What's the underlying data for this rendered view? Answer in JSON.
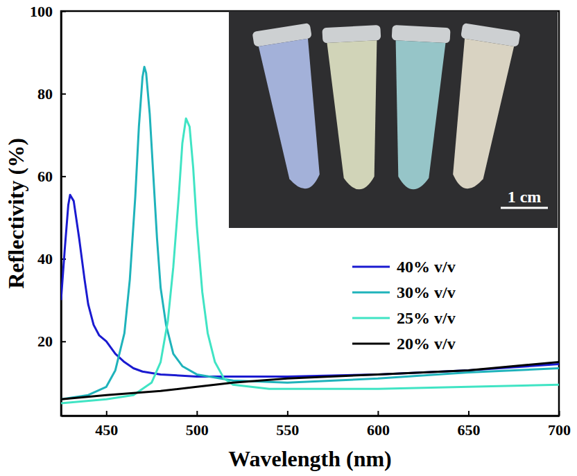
{
  "chart_data": {
    "type": "line",
    "x_label": "Wavelength (nm)",
    "y_label": "Reflectivity (%)",
    "xlim": [
      425,
      700
    ],
    "ylim": [
      2,
      100
    ],
    "xticks": [
      450,
      500,
      550,
      600,
      650,
      700
    ],
    "yticks": [
      20,
      40,
      60,
      80,
      100
    ],
    "legend": "lower right",
    "grid": false,
    "annotations": [
      {
        "text": "1 cm"
      }
    ],
    "series": [
      {
        "name": "40% v/v",
        "color": "#1a1ad0",
        "x": [
          425,
          427,
          429,
          430,
          432,
          435,
          438,
          440,
          443,
          446,
          450,
          455,
          460,
          465,
          470,
          480,
          500,
          550,
          600,
          650,
          700
        ],
        "values": [
          30,
          42,
          53,
          55.5,
          54,
          45,
          35,
          29,
          24,
          21.5,
          20,
          17,
          15,
          13.5,
          12.7,
          12,
          11.5,
          11.5,
          12,
          13,
          14.5
        ]
      },
      {
        "name": "30% v/v",
        "color": "#1fb3bb",
        "x": [
          425,
          440,
          450,
          455,
          460,
          463,
          466,
          468,
          470,
          471,
          472,
          474,
          476,
          478,
          480,
          483,
          487,
          492,
          500,
          520,
          550,
          600,
          650,
          700
        ],
        "values": [
          6,
          7,
          9,
          13,
          22,
          35,
          55,
          72,
          84,
          86.5,
          85,
          75,
          60,
          45,
          33,
          24,
          17,
          14,
          12,
          10.5,
          10,
          11,
          12.5,
          13.5
        ]
      },
      {
        "name": "25% v/v",
        "color": "#40e4c4",
        "x": [
          425,
          450,
          465,
          475,
          480,
          484,
          487,
          490,
          492,
          494,
          496,
          498,
          500,
          503,
          506,
          510,
          515,
          520,
          540,
          600,
          650,
          700
        ],
        "values": [
          5,
          6,
          7,
          10,
          15,
          25,
          38,
          55,
          68,
          74,
          72,
          62,
          48,
          32,
          22,
          15,
          11,
          9.5,
          8.5,
          8.5,
          9,
          9.5
        ]
      },
      {
        "name": "20% v/v",
        "color": "#000000",
        "x": [
          425,
          450,
          480,
          500,
          520,
          550,
          600,
          650,
          700
        ],
        "values": [
          6,
          7,
          8,
          9,
          10,
          11,
          12,
          13,
          15
        ]
      }
    ]
  }
}
